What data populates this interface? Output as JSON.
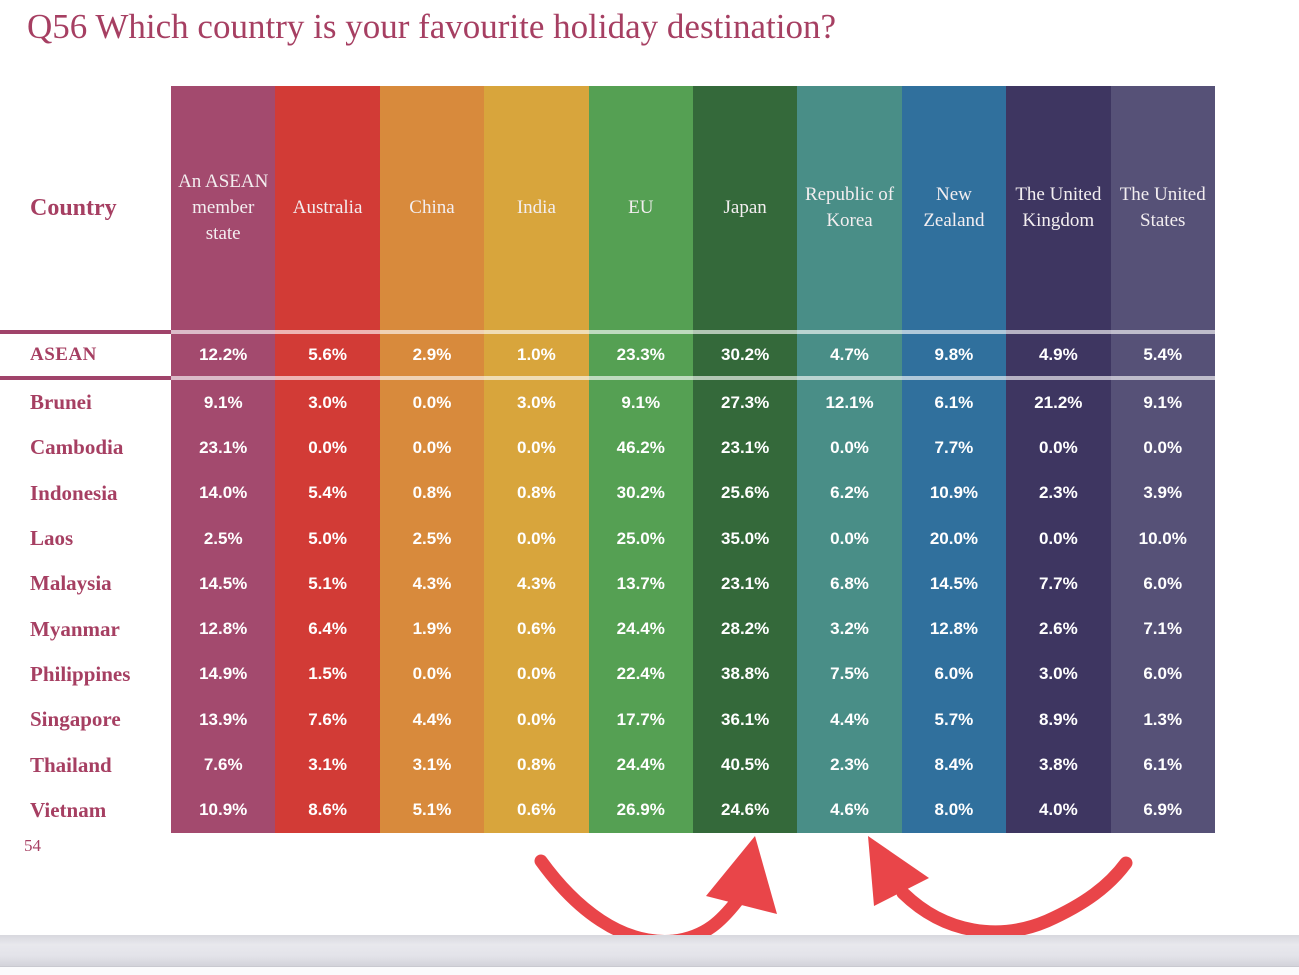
{
  "page": {
    "title": "Q56 Which country is your favourite holiday destination?",
    "page_number": "54"
  },
  "colors": {
    "title_text": "#a63f62",
    "row_label_text": "#a63f62",
    "separator_line": "#a0436a",
    "cell_value_text": "#ffffff",
    "arrow_red": "#e94549",
    "bottom_bar_grey": "#e3e3e9"
  },
  "chart_data": {
    "type": "table",
    "title": "Q56 Which country is your favourite holiday destination?",
    "corner_label": "Country",
    "columns": [
      {
        "label": "An ASEAN member state",
        "color": "#a34a6e"
      },
      {
        "label": "Australia",
        "color": "#d23b36"
      },
      {
        "label": "China",
        "color": "#d88a3c"
      },
      {
        "label": "India",
        "color": "#d8a53c"
      },
      {
        "label": "EU",
        "color": "#55a053"
      },
      {
        "label": "Japan",
        "color": "#34693a"
      },
      {
        "label": "Republic of Korea",
        "color": "#498e87"
      },
      {
        "label": "New Zealand",
        "color": "#30709d"
      },
      {
        "label": "The United Kingdom",
        "color": "#3e3661"
      },
      {
        "label": "The United States",
        "color": "#565177"
      }
    ],
    "summary_row": {
      "label": "ASEAN",
      "values": [
        "12.2%",
        "5.6%",
        "2.9%",
        "1.0%",
        "23.3%",
        "30.2%",
        "4.7%",
        "9.8%",
        "4.9%",
        "5.4%"
      ]
    },
    "rows": [
      {
        "label": "Brunei",
        "values": [
          "9.1%",
          "3.0%",
          "0.0%",
          "3.0%",
          "9.1%",
          "27.3%",
          "12.1%",
          "6.1%",
          "21.2%",
          "9.1%"
        ]
      },
      {
        "label": "Cambodia",
        "values": [
          "23.1%",
          "0.0%",
          "0.0%",
          "0.0%",
          "46.2%",
          "23.1%",
          "0.0%",
          "7.7%",
          "0.0%",
          "0.0%"
        ]
      },
      {
        "label": "Indonesia",
        "values": [
          "14.0%",
          "5.4%",
          "0.8%",
          "0.8%",
          "30.2%",
          "25.6%",
          "6.2%",
          "10.9%",
          "2.3%",
          "3.9%"
        ]
      },
      {
        "label": "Laos",
        "values": [
          "2.5%",
          "5.0%",
          "2.5%",
          "0.0%",
          "25.0%",
          "35.0%",
          "0.0%",
          "20.0%",
          "0.0%",
          "10.0%"
        ]
      },
      {
        "label": "Malaysia",
        "values": [
          "14.5%",
          "5.1%",
          "4.3%",
          "4.3%",
          "13.7%",
          "23.1%",
          "6.8%",
          "14.5%",
          "7.7%",
          "6.0%"
        ]
      },
      {
        "label": "Myanmar",
        "values": [
          "12.8%",
          "6.4%",
          "1.9%",
          "0.6%",
          "24.4%",
          "28.2%",
          "3.2%",
          "12.8%",
          "2.6%",
          "7.1%"
        ]
      },
      {
        "label": "Philippines",
        "values": [
          "14.9%",
          "1.5%",
          "0.0%",
          "0.0%",
          "22.4%",
          "38.8%",
          "7.5%",
          "6.0%",
          "3.0%",
          "6.0%"
        ]
      },
      {
        "label": "Singapore",
        "values": [
          "13.9%",
          "7.6%",
          "4.4%",
          "0.0%",
          "17.7%",
          "36.1%",
          "4.4%",
          "5.7%",
          "8.9%",
          "1.3%"
        ]
      },
      {
        "label": "Thailand",
        "values": [
          "7.6%",
          "3.1%",
          "3.1%",
          "0.8%",
          "24.4%",
          "40.5%",
          "2.3%",
          "8.4%",
          "3.8%",
          "6.1%"
        ]
      },
      {
        "label": "Vietnam",
        "values": [
          "10.9%",
          "8.6%",
          "5.1%",
          "0.6%",
          "26.9%",
          "24.6%",
          "4.6%",
          "8.0%",
          "4.0%",
          "6.9%"
        ]
      }
    ],
    "annotations": [
      "red curved arrow pointing up at the Japan column",
      "red curved arrow pointing up-left at the Republic of Korea column"
    ],
    "legend_position": "none",
    "grid": false
  }
}
